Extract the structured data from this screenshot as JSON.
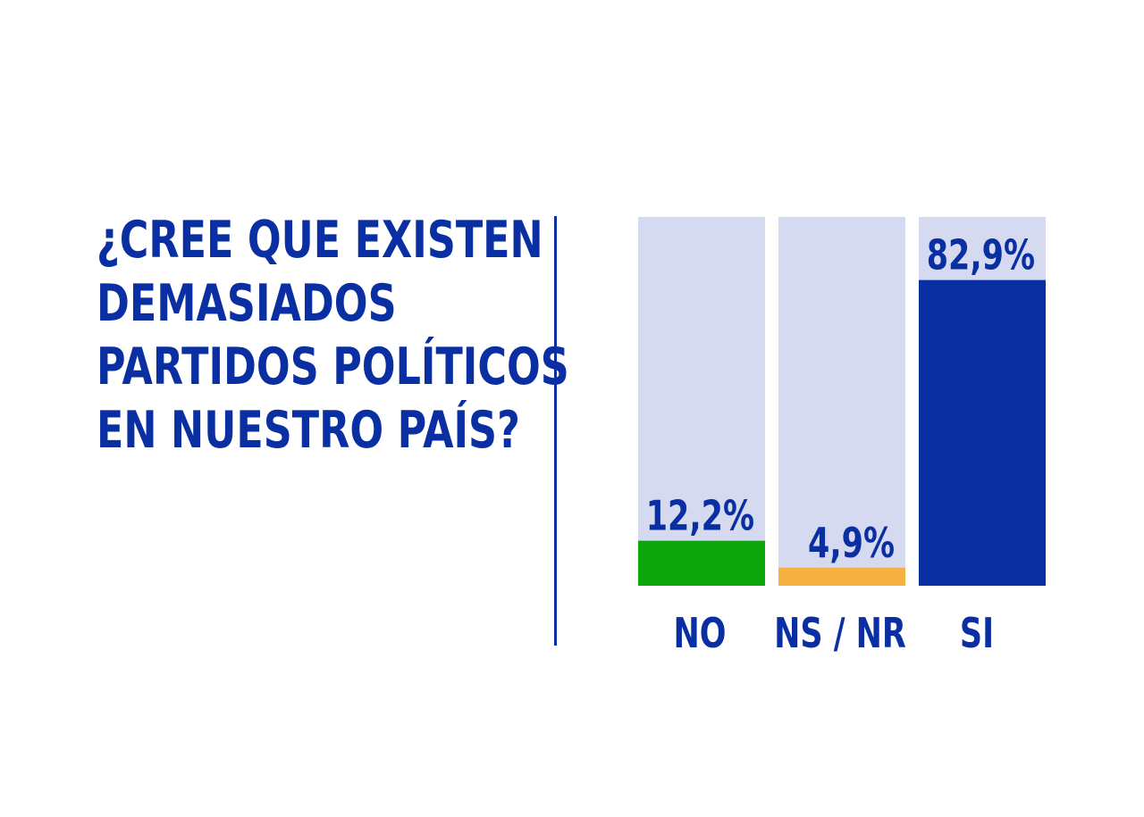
{
  "chart_data": {
    "type": "bar",
    "title_lines": [
      "¿CREE QUE EXISTEN",
      "DEMASIADOS",
      "PARTIDOS POLÍTICOS",
      "EN NUESTRO PAÍS?"
    ],
    "categories": [
      "NO",
      "NS / NR",
      "SI"
    ],
    "values": [
      12.2,
      4.9,
      82.9
    ],
    "value_labels": [
      "12,2%",
      "4,9%",
      "82,9%"
    ],
    "ylim": [
      0,
      100
    ],
    "colors": {
      "text": "#0a2fa3",
      "track": "#d5daf0",
      "bars": [
        "#0ca50c",
        "#f5b142",
        "#0a2fa3"
      ]
    }
  }
}
